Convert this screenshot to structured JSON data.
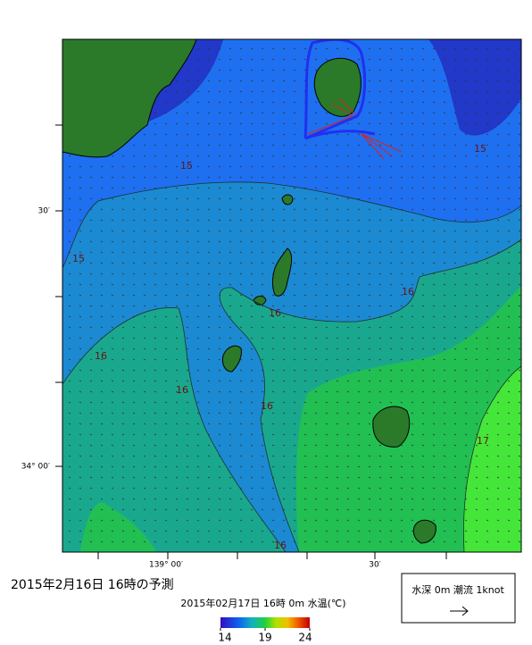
{
  "map": {
    "title": "2015年2月16日  16時の予測",
    "subtitle": "2015年02月17日 16時 0m 水温(℃)",
    "lat_labels": [
      "30′",
      "34° 00′"
    ],
    "lon_labels": [
      "139° 00′",
      "30′"
    ],
    "contour_labels": [
      15,
      15,
      15,
      16,
      16,
      16,
      16,
      16,
      16,
      17
    ]
  },
  "colorbar": {
    "lim": [
      14,
      24
    ],
    "ticks": [
      14,
      19,
      24
    ]
  },
  "legend": {
    "text": "水深 0m 潮流 1knot"
  }
}
